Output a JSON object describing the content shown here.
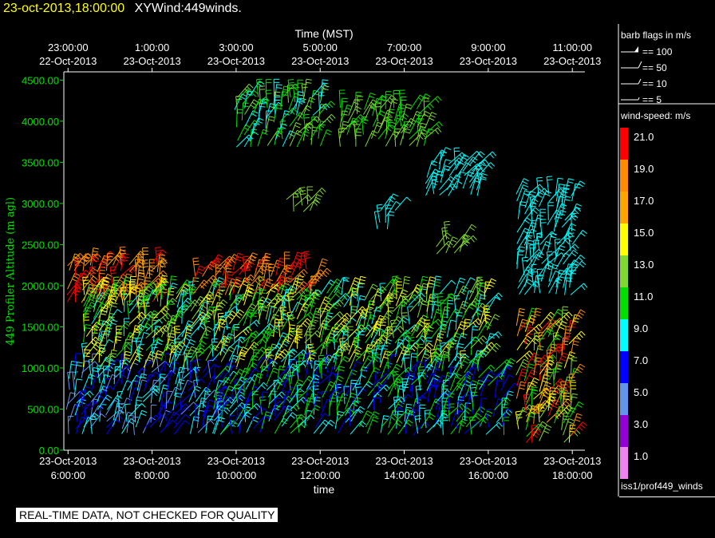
{
  "title": {
    "datetime": "23-oct-2013,18:00:00",
    "product": "XYWind:449winds."
  },
  "quality_notice": "REAL-TIME DATA, NOT CHECKED FOR QUALITY",
  "sidebar_label": "iss1/prof449_winds",
  "chart_data": {
    "type": "wind-barbs",
    "top_axis": {
      "label": "Time (MST)",
      "ticks": [
        {
          "time": "23:00:00",
          "date": "22-Oct-2013"
        },
        {
          "time": "1:00:00",
          "date": "23-Oct-2013"
        },
        {
          "time": "3:00:00",
          "date": "23-Oct-2013"
        },
        {
          "time": "5:00:00",
          "date": "23-Oct-2013"
        },
        {
          "time": "7:00:00",
          "date": "23-Oct-2013"
        },
        {
          "time": "9:00:00",
          "date": "23-Oct-2013"
        },
        {
          "time": "11:00:00",
          "date": "23-Oct-2013"
        }
      ]
    },
    "bottom_axis": {
      "label": "time",
      "ticks": [
        {
          "date": "23-Oct-2013",
          "time": "6:00:00"
        },
        {
          "date": "23-Oct-2013",
          "time": "8:00:00"
        },
        {
          "date": "23-Oct-2013",
          "time": "10:00:00"
        },
        {
          "date": "23-Oct-2013",
          "time": "12:00:00"
        },
        {
          "date": "23-Oct-2013",
          "time": "14:00:00"
        },
        {
          "date": "23-Oct-2013",
          "time": "16:00:00"
        },
        {
          "date": "23-Oct-2013",
          "time": "18:00:00"
        }
      ],
      "range_hours_utc": [
        5.9,
        18.3
      ]
    },
    "y_axis": {
      "label": "449 Profiler Altitude (m agl)",
      "ticks": [
        "0.00",
        "500.00",
        "1000.00",
        "1500.00",
        "2000.00",
        "2500.00",
        "3000.00",
        "3500.00",
        "4000.00",
        "4500.00"
      ],
      "range": [
        0,
        4600
      ]
    },
    "barb_legend": {
      "title": "barb flags in m/s",
      "entries": [
        "== 100",
        "== 50",
        "== 10",
        "== 5"
      ]
    },
    "colorbar": {
      "title": "wind-speed: m/s",
      "levels": [
        {
          "label": "21.0",
          "color": "#ff0000"
        },
        {
          "label": "19.0",
          "color": "#ff8c00"
        },
        {
          "label": "17.0",
          "color": "#ffa500"
        },
        {
          "label": "15.0",
          "color": "#ffff00"
        },
        {
          "label": "13.0",
          "color": "#7fd930"
        },
        {
          "label": "11.0",
          "color": "#00e000"
        },
        {
          "label": "9.0",
          "color": "#00ffff"
        },
        {
          "label": "7.0",
          "color": "#0000ff"
        },
        {
          "label": "5.0",
          "color": "#6495ed"
        },
        {
          "label": "3.0",
          "color": "#9400d3"
        },
        {
          "label": "1.0",
          "color": "#ee82ee"
        }
      ]
    },
    "barb_regions": [
      {
        "t": [
          6.0,
          8.3
        ],
        "alt": [
          1800,
          2300
        ],
        "speed": [
          15,
          21
        ]
      },
      {
        "t": [
          6.0,
          9.7
        ],
        "alt": [
          200,
          1000
        ],
        "speed": [
          3,
          9
        ]
      },
      {
        "t": [
          6.4,
          16.0
        ],
        "alt": [
          1000,
          1900
        ],
        "speed": [
          7,
          15
        ]
      },
      {
        "t": [
          9.0,
          12.0
        ],
        "alt": [
          1900,
          2200
        ],
        "speed": [
          17,
          21
        ]
      },
      {
        "t": [
          9.5,
          16.5
        ],
        "alt": [
          200,
          1000
        ],
        "speed": [
          5,
          11
        ]
      },
      {
        "t": [
          16.7,
          18.1
        ],
        "alt": [
          100,
          1550
        ],
        "speed": [
          9,
          21
        ]
      },
      {
        "t": [
          10.0,
          12.0
        ],
        "alt": [
          3700,
          4300
        ],
        "speed": [
          7,
          13
        ]
      },
      {
        "t": [
          12.5,
          14.5
        ],
        "alt": [
          3700,
          4200
        ],
        "speed": [
          9,
          13
        ]
      },
      {
        "t": [
          14.5,
          15.8
        ],
        "alt": [
          3100,
          3500
        ],
        "speed": [
          7,
          9
        ]
      },
      {
        "t": [
          16.7,
          18.0
        ],
        "alt": [
          1900,
          3100
        ],
        "speed": [
          7,
          9
        ]
      },
      {
        "t": [
          14.8,
          15.4
        ],
        "alt": [
          2400,
          2600
        ],
        "speed": [
          11,
          13
        ]
      },
      {
        "t": [
          11.2,
          11.8
        ],
        "alt": [
          2900,
          3050
        ],
        "speed": [
          11,
          13
        ]
      },
      {
        "t": [
          13.4,
          13.8
        ],
        "alt": [
          2700,
          2950
        ],
        "speed": [
          7,
          9
        ]
      }
    ]
  }
}
